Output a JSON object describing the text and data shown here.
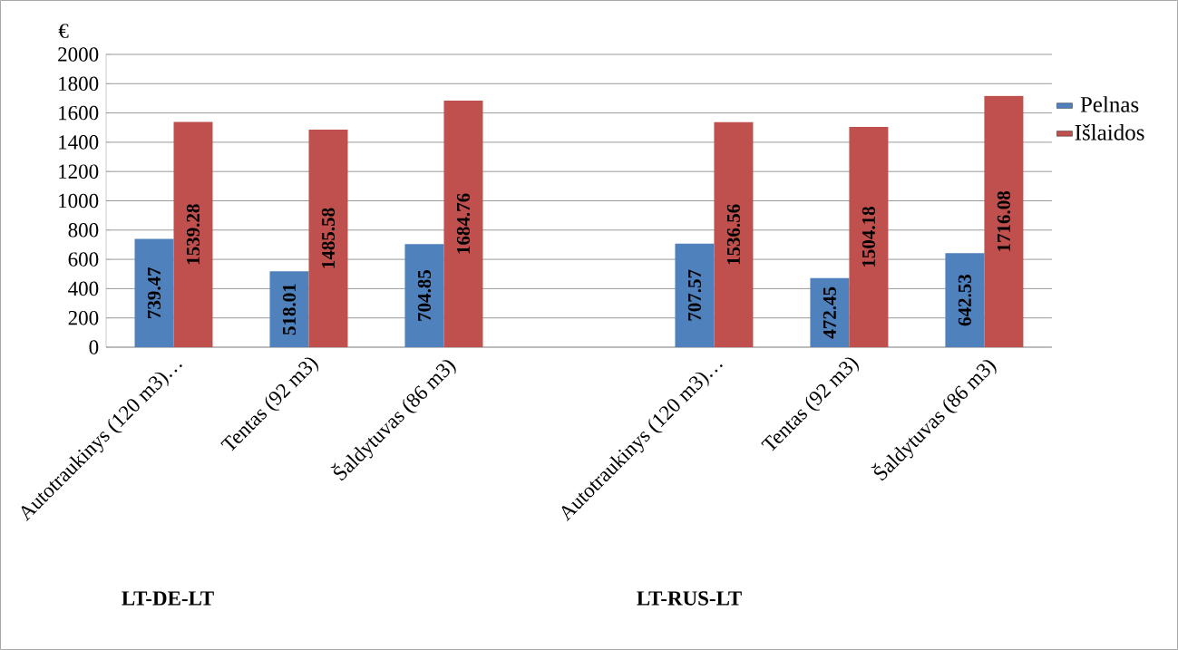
{
  "chart_data": {
    "type": "bar",
    "ylabel": "€",
    "categories": [
      "Autotraukinys (120 m3)…",
      "Tentas (92 m3)",
      "Šaldytuvas (86 m3)",
      null,
      "Autotraukinys (120 m3)…",
      "Tentas (92 m3)",
      "Šaldytuvas (86 m3)"
    ],
    "series": [
      {
        "name": "Pelnas",
        "color": "#4f81bd",
        "values": [
          739.47,
          518.01,
          704.85,
          null,
          707.57,
          472.45,
          642.53
        ]
      },
      {
        "name": "Išlaidos",
        "color": "#c0504d",
        "values": [
          1539.28,
          1485.58,
          1684.76,
          null,
          1536.56,
          1504.18,
          1716.08
        ]
      }
    ],
    "ylim": [
      0,
      2000
    ],
    "yticks": [
      0,
      200,
      400,
      600,
      800,
      1000,
      1200,
      1400,
      1600,
      1800,
      2000
    ],
    "grid": "y",
    "legend": "right",
    "data_labels": true,
    "annotations": [
      "LT-DE-LT",
      "LT-RUS-LT"
    ]
  }
}
